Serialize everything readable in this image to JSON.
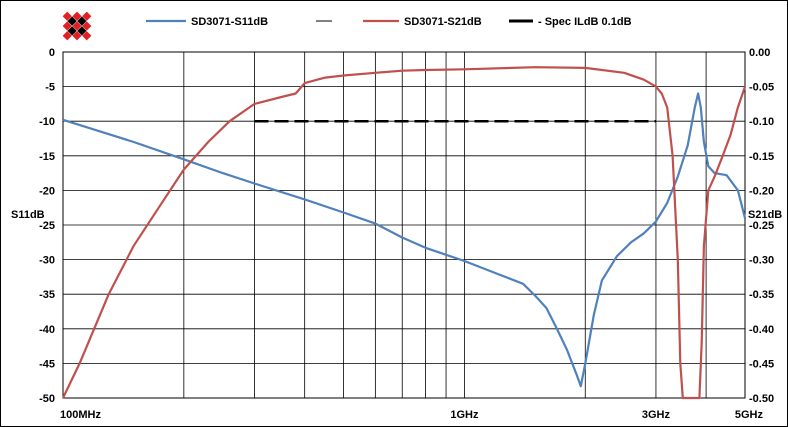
{
  "chart_data": {
    "type": "line",
    "title": "",
    "x_scale": "log",
    "x_unit": "Hz",
    "xlim": [
      100000000,
      5000000000
    ],
    "x_tick_labels": [
      {
        "x": 100000000,
        "label": "100MHz"
      },
      {
        "x": 1000000000,
        "label": "1GHz"
      },
      {
        "x": 3000000000,
        "label": "3GHz"
      },
      {
        "x": 5000000000,
        "label": "5GHz"
      }
    ],
    "x_gridlines": [
      200000000,
      300000000,
      400000000,
      500000000,
      600000000,
      700000000,
      800000000,
      900000000,
      1000000000,
      2000000000,
      3000000000,
      4000000000
    ],
    "y_left": {
      "label": "S11dB",
      "lim": [
        -50,
        0
      ],
      "ticks": [
        "0",
        "-5",
        "-10",
        "-15",
        "-20",
        "-25",
        "-30",
        "-35",
        "-40",
        "-45",
        "-50"
      ]
    },
    "y_right": {
      "label": "S21dB",
      "lim": [
        -0.5,
        0
      ],
      "ticks": [
        "0.00",
        "-0.05",
        "-0.10",
        "-0.15",
        "-0.20",
        "-0.25",
        "-0.30",
        "-0.35",
        "-0.40",
        "-0.45",
        "-0.50"
      ]
    },
    "grid": true,
    "legend_position": "top",
    "series": [
      {
        "name": "SD3071-S11dB",
        "axis": "left",
        "color": "#4F81BD",
        "points": [
          [
            100000000,
            -9.8
          ],
          [
            150000000,
            -13
          ],
          [
            200000000,
            -15.5
          ],
          [
            250000000,
            -17.5
          ],
          [
            300000000,
            -19
          ],
          [
            400000000,
            -21.3
          ],
          [
            500000000,
            -23.2
          ],
          [
            600000000,
            -24.8
          ],
          [
            700000000,
            -26.8
          ],
          [
            800000000,
            -28.3
          ],
          [
            900000000,
            -29.3
          ],
          [
            1000000000,
            -30.2
          ],
          [
            1200000000,
            -32
          ],
          [
            1400000000,
            -33.5
          ],
          [
            1500000000,
            -35.2
          ],
          [
            1600000000,
            -37
          ],
          [
            1700000000,
            -40
          ],
          [
            1800000000,
            -43
          ],
          [
            1900000000,
            -46.5
          ],
          [
            1950000000,
            -48.3
          ],
          [
            2000000000,
            -45
          ],
          [
            2100000000,
            -38
          ],
          [
            2200000000,
            -33
          ],
          [
            2400000000,
            -29.5
          ],
          [
            2600000000,
            -27.5
          ],
          [
            2800000000,
            -26.2
          ],
          [
            3000000000,
            -24.5
          ],
          [
            3200000000,
            -21.8
          ],
          [
            3400000000,
            -18
          ],
          [
            3600000000,
            -13.5
          ],
          [
            3750000000,
            -8
          ],
          [
            3820000000,
            -6
          ],
          [
            3880000000,
            -8
          ],
          [
            3950000000,
            -13
          ],
          [
            4050000000,
            -16.5
          ],
          [
            4200000000,
            -17.5
          ],
          [
            4500000000,
            -17.8
          ],
          [
            4800000000,
            -20
          ],
          [
            5000000000,
            -24
          ]
        ]
      },
      {
        "name": "SD3071-S21dB",
        "axis": "right",
        "color": "#C0504D",
        "points": [
          [
            100000000,
            -0.5
          ],
          [
            110000000,
            -0.45
          ],
          [
            130000000,
            -0.35
          ],
          [
            150000000,
            -0.28
          ],
          [
            180000000,
            -0.21
          ],
          [
            200000000,
            -0.17
          ],
          [
            230000000,
            -0.13
          ],
          [
            260000000,
            -0.1
          ],
          [
            300000000,
            -0.075
          ],
          [
            350000000,
            -0.065
          ],
          [
            380000000,
            -0.06
          ],
          [
            400000000,
            -0.045
          ],
          [
            450000000,
            -0.037
          ],
          [
            500000000,
            -0.034
          ],
          [
            600000000,
            -0.03
          ],
          [
            700000000,
            -0.027
          ],
          [
            800000000,
            -0.026
          ],
          [
            1000000000,
            -0.025
          ],
          [
            1500000000,
            -0.022
          ],
          [
            2000000000,
            -0.023
          ],
          [
            2500000000,
            -0.03
          ],
          [
            2800000000,
            -0.04
          ],
          [
            3000000000,
            -0.05
          ],
          [
            3100000000,
            -0.06
          ],
          [
            3200000000,
            -0.08
          ],
          [
            3300000000,
            -0.15
          ],
          [
            3400000000,
            -0.3
          ],
          [
            3450000000,
            -0.45
          ],
          [
            3500000000,
            -0.5
          ],
          [
            3850000000,
            -0.5
          ],
          [
            3900000000,
            -0.42
          ],
          [
            3950000000,
            -0.28
          ],
          [
            4050000000,
            -0.2
          ],
          [
            4200000000,
            -0.18
          ],
          [
            4400000000,
            -0.15
          ],
          [
            4600000000,
            -0.12
          ],
          [
            4800000000,
            -0.08
          ],
          [
            5000000000,
            -0.05
          ]
        ]
      },
      {
        "name": "Spec ILdB 0.1dB",
        "axis": "right",
        "color": "#000000",
        "style": "dashed",
        "points": [
          [
            300000000,
            -0.1
          ],
          [
            3000000000,
            -0.1
          ]
        ]
      }
    ],
    "legend_entries": [
      {
        "name": "SD3071-S11dB",
        "marker": "line",
        "color": "#4F81BD"
      },
      {
        "name": "",
        "marker": "line",
        "color": "#000000"
      },
      {
        "name": "SD3071-S21dB",
        "marker": "line",
        "color": "#C0504D"
      },
      {
        "name": "- Spec ILdB 0.1dB",
        "marker": "dash",
        "color": "#000000"
      }
    ]
  }
}
